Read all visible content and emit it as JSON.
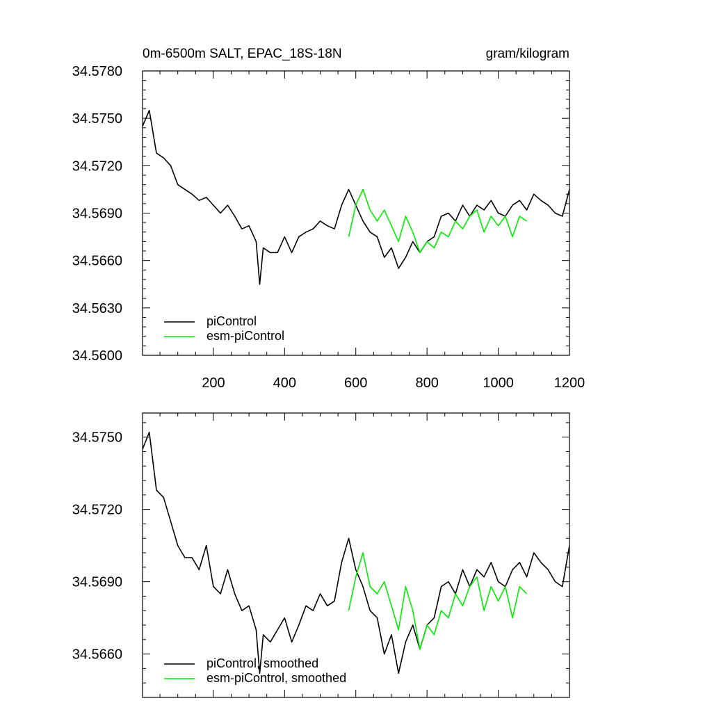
{
  "chart_data": [
    {
      "type": "line",
      "title": "0m-6500m SALT, EPAC_18S-18N",
      "units_label": "gram/kilogram",
      "xlim": [
        1,
        1200
      ],
      "ylim": [
        34.56,
        34.578
      ],
      "x_ticks": [
        200,
        400,
        600,
        800,
        1000,
        1200
      ],
      "x_tick_labels": [
        "200",
        "400",
        "600",
        "800",
        "1000",
        "1200"
      ],
      "y_ticks": [
        34.56,
        34.563,
        34.566,
        34.569,
        34.572,
        34.575,
        34.578
      ],
      "y_tick_labels": [
        "34.5600",
        "34.5630",
        "34.5660",
        "34.5690",
        "34.5720",
        "34.5750",
        "34.5780"
      ],
      "grid": false,
      "legend_position": "bottom-left",
      "series": [
        {
          "name": "piControl",
          "color": "#000000",
          "x": [
            1,
            20,
            40,
            60,
            80,
            100,
            120,
            140,
            160,
            180,
            200,
            220,
            240,
            260,
            280,
            300,
            320,
            330,
            340,
            360,
            380,
            400,
            420,
            440,
            460,
            480,
            500,
            520,
            540,
            560,
            580,
            600,
            620,
            640,
            660,
            680,
            700,
            720,
            740,
            760,
            780,
            800,
            820,
            840,
            860,
            880,
            900,
            920,
            940,
            960,
            980,
            1000,
            1020,
            1040,
            1060,
            1080,
            1100,
            1120,
            1140,
            1160,
            1180,
            1200
          ],
          "values": [
            34.5745,
            34.5755,
            34.5728,
            34.5725,
            34.572,
            34.5708,
            34.5705,
            34.5702,
            34.5698,
            34.57,
            34.5695,
            34.569,
            34.5695,
            34.5688,
            34.568,
            34.5682,
            34.5672,
            34.5645,
            34.5668,
            34.5665,
            34.5665,
            34.5675,
            34.5665,
            34.5675,
            34.5678,
            34.568,
            34.5685,
            34.5682,
            34.568,
            34.5695,
            34.5705,
            34.5695,
            34.5685,
            34.5678,
            34.5675,
            34.5662,
            34.5668,
            34.5655,
            34.5662,
            34.5672,
            34.5665,
            34.5672,
            34.5675,
            34.5688,
            34.569,
            34.5685,
            34.5695,
            34.5688,
            34.5695,
            34.5692,
            34.5698,
            34.569,
            34.5688,
            34.5695,
            34.5698,
            34.5692,
            34.5702,
            34.5698,
            34.5695,
            34.569,
            34.5688,
            34.5705
          ]
        },
        {
          "name": "esm-piControl",
          "color": "#00ee00",
          "x": [
            580,
            600,
            620,
            640,
            660,
            680,
            700,
            720,
            740,
            760,
            780,
            800,
            820,
            840,
            860,
            880,
            900,
            920,
            940,
            960,
            980,
            1000,
            1020,
            1040,
            1060,
            1080
          ],
          "values": [
            34.5675,
            34.5695,
            34.5705,
            34.5692,
            34.5685,
            34.5692,
            34.5682,
            34.5672,
            34.5688,
            34.5678,
            34.5665,
            34.5672,
            34.5668,
            34.5678,
            34.5675,
            34.5685,
            34.568,
            34.5688,
            34.5692,
            34.5678,
            34.5688,
            34.5682,
            34.5688,
            34.5675,
            34.5688,
            34.5685
          ]
        }
      ]
    },
    {
      "type": "line",
      "title": "",
      "xlim": [
        1,
        1200
      ],
      "ylim": [
        34.5642,
        34.576
      ],
      "x_ticks": [
        200,
        400,
        600,
        800,
        1000,
        1200
      ],
      "y_ticks": [
        34.566,
        34.569,
        34.572,
        34.575
      ],
      "y_tick_labels": [
        "34.5660",
        "34.5690",
        "34.5720",
        "34.5750"
      ],
      "grid": false,
      "legend_position": "bottom-left",
      "series": [
        {
          "name": "piControl, smoothed",
          "color": "#000000",
          "x": [
            1,
            20,
            40,
            60,
            80,
            100,
            120,
            140,
            160,
            180,
            200,
            220,
            240,
            260,
            280,
            300,
            320,
            330,
            340,
            360,
            380,
            400,
            420,
            440,
            460,
            480,
            500,
            520,
            540,
            560,
            580,
            600,
            620,
            640,
            660,
            680,
            700,
            720,
            740,
            760,
            780,
            800,
            820,
            840,
            860,
            880,
            900,
            920,
            940,
            960,
            980,
            1000,
            1020,
            1040,
            1060,
            1080,
            1100,
            1120,
            1140,
            1160,
            1180,
            1200
          ],
          "values": [
            34.5745,
            34.5752,
            34.5728,
            34.5725,
            34.5715,
            34.5705,
            34.57,
            34.57,
            34.5695,
            34.5705,
            34.5688,
            34.5685,
            34.5695,
            34.5685,
            34.5678,
            34.568,
            34.567,
            34.5652,
            34.5668,
            34.5665,
            34.567,
            34.5675,
            34.5665,
            34.5672,
            34.568,
            34.5678,
            34.5685,
            34.568,
            34.5682,
            34.5698,
            34.5708,
            34.5695,
            34.5688,
            34.5678,
            34.5675,
            34.566,
            34.5668,
            34.5652,
            34.5665,
            34.5672,
            34.5662,
            34.5672,
            34.5675,
            34.5688,
            34.569,
            34.5685,
            34.5695,
            34.5688,
            34.5695,
            34.5692,
            34.5698,
            34.569,
            34.5688,
            34.5695,
            34.5698,
            34.5692,
            34.5702,
            34.5698,
            34.5695,
            34.569,
            34.5688,
            34.5705
          ]
        },
        {
          "name": "esm-piControl, smoothed",
          "color": "#00ee00",
          "x": [
            580,
            600,
            620,
            640,
            660,
            680,
            700,
            720,
            740,
            760,
            780,
            800,
            820,
            840,
            860,
            880,
            900,
            920,
            940,
            960,
            980,
            1000,
            1020,
            1040,
            1060,
            1080
          ],
          "values": [
            34.5678,
            34.5692,
            34.5702,
            34.5688,
            34.5685,
            34.569,
            34.568,
            34.567,
            34.5688,
            34.5678,
            34.5662,
            34.5672,
            34.5668,
            34.5678,
            34.5675,
            34.5685,
            34.568,
            34.5688,
            34.5692,
            34.5678,
            34.5688,
            34.5682,
            34.5688,
            34.5675,
            34.5688,
            34.5685
          ]
        }
      ]
    }
  ]
}
